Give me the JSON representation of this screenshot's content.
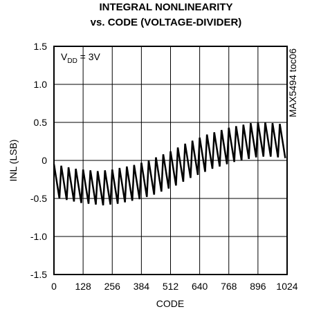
{
  "chart_data": {
    "type": "line",
    "title_lines": [
      "INTEGRAL NONLINEARITY",
      "vs. CODE (VOLTAGE-DIVIDER)"
    ],
    "xlabel": "CODE",
    "ylabel": "INL (LSB)",
    "annotation": {
      "main": "V",
      "sub": "DD",
      "rest": " = 3V"
    },
    "side_note": "MAX5494 toc06",
    "xlim": [
      0,
      1024
    ],
    "xticks": [
      0,
      128,
      256,
      384,
      512,
      640,
      768,
      896,
      1024
    ],
    "ylim": [
      -1.5,
      1.5
    ],
    "yticks": [
      -1.5,
      {
        "value": -1.0,
        "label": "-1.0"
      },
      -0.5,
      0,
      0.5,
      {
        "value": 1.0,
        "label": "1.0"
      },
      1.5
    ],
    "grid": true,
    "series": [
      {
        "color": "#000000",
        "x": [
          0,
          24,
          32,
          56,
          64,
          88,
          96,
          120,
          128,
          152,
          160,
          184,
          192,
          216,
          224,
          248,
          256,
          280,
          288,
          312,
          320,
          344,
          352,
          376,
          384,
          408,
          416,
          440,
          448,
          472,
          480,
          504,
          512,
          536,
          544,
          568,
          576,
          600,
          608,
          632,
          640,
          664,
          672,
          696,
          704,
          728,
          736,
          760,
          768,
          792,
          800,
          824,
          832,
          856,
          864,
          888,
          896,
          920,
          928,
          952,
          960,
          984,
          992,
          1016
        ],
        "values": [
          -0.05,
          -0.5,
          -0.07,
          -0.52,
          -0.09,
          -0.54,
          -0.11,
          -0.56,
          -0.12,
          -0.57,
          -0.13,
          -0.58,
          -0.14,
          -0.59,
          -0.13,
          -0.58,
          -0.12,
          -0.57,
          -0.1,
          -0.55,
          -0.08,
          -0.53,
          -0.06,
          -0.51,
          -0.03,
          -0.48,
          0.0,
          -0.45,
          0.04,
          -0.41,
          0.08,
          -0.37,
          0.12,
          -0.33,
          0.17,
          -0.28,
          0.22,
          -0.23,
          0.26,
          -0.19,
          0.3,
          -0.15,
          0.34,
          -0.11,
          0.37,
          -0.08,
          0.4,
          -0.05,
          0.43,
          -0.02,
          0.45,
          0.0,
          0.47,
          0.02,
          0.49,
          0.04,
          0.5,
          0.05,
          0.5,
          0.05,
          0.49,
          0.04,
          0.48,
          0.03
        ]
      }
    ]
  }
}
